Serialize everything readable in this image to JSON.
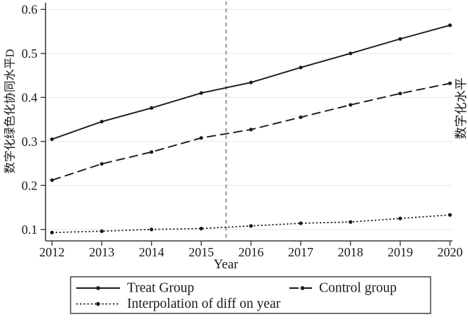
{
  "chart_data": {
    "type": "line",
    "title": "",
    "xlabel": "Year",
    "ylabel_left": "数字化绿色化协同水平D",
    "ylabel_right": "数字化水平",
    "x": [
      2012,
      2013,
      2014,
      2015,
      2016,
      2017,
      2018,
      2019,
      2020
    ],
    "x_tick_labels": [
      "2012",
      "2013",
      "2014",
      "2015",
      "2016",
      "2017",
      "2018",
      "2019",
      "2020"
    ],
    "y_ticks": [
      0.1,
      0.2,
      0.3,
      0.4,
      0.5,
      0.6
    ],
    "y_tick_labels": [
      "0.1",
      "0.2",
      "0.3",
      "0.4",
      "0.5",
      "0.6"
    ],
    "xlim": [
      2011.87,
      2020.05
    ],
    "ylim": [
      0.074,
      0.615
    ],
    "grid": "horizontal",
    "vline_x": 2015.5,
    "series": [
      {
        "name": "Treat Group",
        "style": "solid",
        "values": [
          0.305,
          0.345,
          0.376,
          0.41,
          0.434,
          0.468,
          0.5,
          0.533,
          0.564
        ]
      },
      {
        "name": "Control group",
        "style": "long-dash",
        "values": [
          0.212,
          0.249,
          0.276,
          0.308,
          0.327,
          0.355,
          0.383,
          0.409,
          0.432
        ]
      },
      {
        "name": "Interpolation of diff on year",
        "style": "dotted",
        "values": [
          0.093,
          0.096,
          0.1,
          0.102,
          0.108,
          0.114,
          0.117,
          0.125,
          0.133
        ]
      }
    ],
    "legend": {
      "position": "bottom",
      "border": true,
      "columns": 2
    }
  },
  "colors": {
    "line": "#1a1a1a",
    "axis": "#3a3a3a",
    "grid": "#ececec",
    "vline": "#a6a6a6",
    "legend_border": "#4d4d4d",
    "background": "#ffffff"
  }
}
